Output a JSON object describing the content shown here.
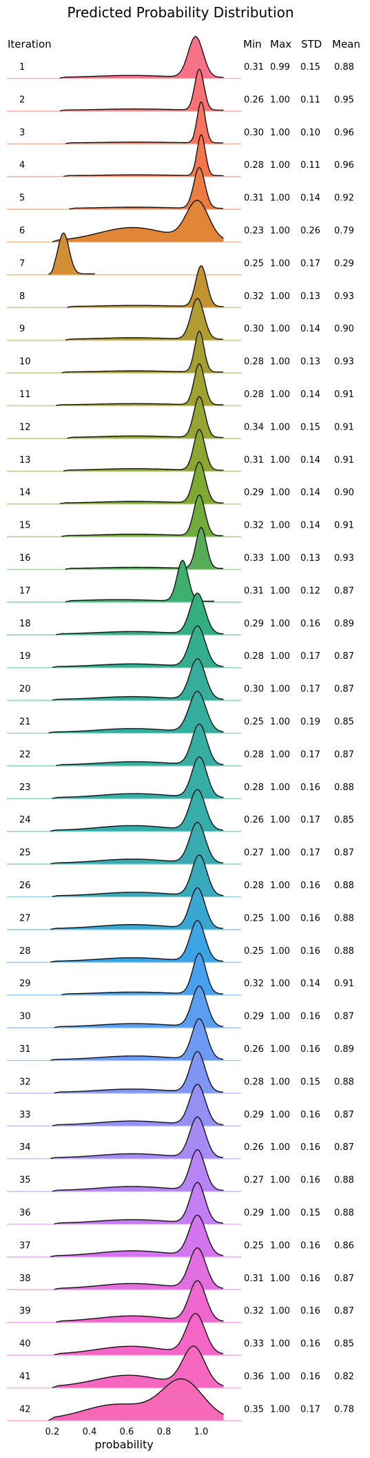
{
  "chart_data": {
    "type": "ridgeline",
    "title": "Predicted Probability Distribution",
    "xlabel": "probability",
    "row_label_header": "Iteration",
    "xlim": [
      0.0,
      1.2
    ],
    "x_ticks": [
      "0.2",
      "0.4",
      "0.6",
      "0.8",
      "1.0"
    ],
    "x_tick_values": [
      0.2,
      0.4,
      0.6,
      0.8,
      1.0
    ],
    "stat_headers": [
      "Min",
      "Max",
      "STD",
      "Mean"
    ],
    "colors": [
      "#f77189",
      "#f7754f",
      "#dc8932",
      "#ae9d31",
      "#97a431",
      "#77ab31",
      "#33b07a",
      "#35ad9c",
      "#36ada4",
      "#37abb4",
      "#3ba3ec",
      "#6e9bf4",
      "#a48cf4",
      "#cc7af4",
      "#f565cc",
      "#f669b7"
    ],
    "series": [
      {
        "label": "1",
        "min": "0.31",
        "max": "0.99",
        "std": "0.15",
        "mean": "0.88",
        "peak": 0.97,
        "width": 0.04,
        "start": 0.24,
        "bump": 0.05
      },
      {
        "label": "2",
        "min": "0.26",
        "max": "1.00",
        "std": "0.11",
        "mean": "0.95",
        "peak": 0.99,
        "width": 0.025,
        "start": 0.24,
        "bump": 0.03
      },
      {
        "label": "3",
        "min": "0.30",
        "max": "1.00",
        "std": "0.10",
        "mean": "0.96",
        "peak": 1.0,
        "width": 0.022,
        "start": 0.27,
        "bump": 0.02
      },
      {
        "label": "4",
        "min": "0.28",
        "max": "1.00",
        "std": "0.11",
        "mean": "0.96",
        "peak": 1.0,
        "width": 0.022,
        "start": 0.26,
        "bump": 0.02
      },
      {
        "label": "5",
        "min": "0.31",
        "max": "1.00",
        "std": "0.14",
        "mean": "0.92",
        "peak": 0.99,
        "width": 0.03,
        "start": 0.29,
        "bump": 0.03
      },
      {
        "label": "6",
        "min": "0.23",
        "max": "1.00",
        "std": "0.26",
        "mean": "0.79",
        "peak": 0.98,
        "width": 0.06,
        "start": 0.2,
        "bump": 0.35
      },
      {
        "label": "7",
        "min": "0.25",
        "max": "1.00",
        "std": "0.17",
        "mean": "0.29",
        "peak": 0.26,
        "width": 0.03,
        "start": 0.18,
        "bump": 0.02
      },
      {
        "label": "8",
        "min": "0.32",
        "max": "1.00",
        "std": "0.13",
        "mean": "0.93",
        "peak": 1.0,
        "width": 0.03,
        "start": 0.28,
        "bump": 0.03
      },
      {
        "label": "9",
        "min": "0.30",
        "max": "1.00",
        "std": "0.14",
        "mean": "0.90",
        "peak": 0.98,
        "width": 0.035,
        "start": 0.27,
        "bump": 0.04
      },
      {
        "label": "10",
        "min": "0.28",
        "max": "1.00",
        "std": "0.13",
        "mean": "0.93",
        "peak": 0.99,
        "width": 0.025,
        "start": 0.25,
        "bump": 0.03
      },
      {
        "label": "11",
        "min": "0.28",
        "max": "1.00",
        "std": "0.14",
        "mean": "0.91",
        "peak": 0.99,
        "width": 0.028,
        "start": 0.22,
        "bump": 0.03
      },
      {
        "label": "12",
        "min": "0.34",
        "max": "1.00",
        "std": "0.15",
        "mean": "0.91",
        "peak": 0.99,
        "width": 0.03,
        "start": 0.28,
        "bump": 0.04
      },
      {
        "label": "13",
        "min": "0.31",
        "max": "1.00",
        "std": "0.14",
        "mean": "0.91",
        "peak": 0.99,
        "width": 0.03,
        "start": 0.26,
        "bump": 0.04
      },
      {
        "label": "14",
        "min": "0.29",
        "max": "1.00",
        "std": "0.14",
        "mean": "0.90",
        "peak": 0.99,
        "width": 0.032,
        "start": 0.24,
        "bump": 0.04
      },
      {
        "label": "15",
        "min": "0.32",
        "max": "1.00",
        "std": "0.14",
        "mean": "0.91",
        "peak": 0.99,
        "width": 0.03,
        "start": 0.25,
        "bump": 0.04
      },
      {
        "label": "16",
        "min": "0.33",
        "max": "1.00",
        "std": "0.13",
        "mean": "0.93",
        "peak": 1.0,
        "width": 0.028,
        "start": 0.27,
        "bump": 0.03
      },
      {
        "label": "17",
        "min": "0.31",
        "max": "1.00",
        "std": "0.12",
        "mean": "0.87",
        "peak": 0.9,
        "width": 0.03,
        "start": 0.27,
        "bump": 0.04
      },
      {
        "label": "18",
        "min": "0.29",
        "max": "1.00",
        "std": "0.16",
        "mean": "0.89",
        "peak": 0.98,
        "width": 0.04,
        "start": 0.22,
        "bump": 0.06
      },
      {
        "label": "19",
        "min": "0.28",
        "max": "1.00",
        "std": "0.17",
        "mean": "0.87",
        "peak": 0.98,
        "width": 0.042,
        "start": 0.2,
        "bump": 0.07
      },
      {
        "label": "20",
        "min": "0.30",
        "max": "1.00",
        "std": "0.17",
        "mean": "0.87",
        "peak": 0.98,
        "width": 0.042,
        "start": 0.2,
        "bump": 0.07
      },
      {
        "label": "21",
        "min": "0.25",
        "max": "1.00",
        "std": "0.19",
        "mean": "0.85",
        "peak": 0.98,
        "width": 0.045,
        "start": 0.18,
        "bump": 0.09
      },
      {
        "label": "22",
        "min": "0.28",
        "max": "1.00",
        "std": "0.17",
        "mean": "0.87",
        "peak": 0.99,
        "width": 0.04,
        "start": 0.22,
        "bump": 0.08
      },
      {
        "label": "23",
        "min": "0.28",
        "max": "1.00",
        "std": "0.16",
        "mean": "0.88",
        "peak": 0.99,
        "width": 0.04,
        "start": 0.2,
        "bump": 0.1
      },
      {
        "label": "24",
        "min": "0.26",
        "max": "1.00",
        "std": "0.17",
        "mean": "0.85",
        "peak": 0.98,
        "width": 0.042,
        "start": 0.19,
        "bump": 0.12
      },
      {
        "label": "25",
        "min": "0.27",
        "max": "1.00",
        "std": "0.17",
        "mean": "0.87",
        "peak": 0.98,
        "width": 0.042,
        "start": 0.19,
        "bump": 0.1
      },
      {
        "label": "26",
        "min": "0.28",
        "max": "1.00",
        "std": "0.16",
        "mean": "0.88",
        "peak": 0.99,
        "width": 0.04,
        "start": 0.2,
        "bump": 0.09
      },
      {
        "label": "27",
        "min": "0.25",
        "max": "1.00",
        "std": "0.16",
        "mean": "0.88",
        "peak": 0.98,
        "width": 0.04,
        "start": 0.19,
        "bump": 0.1
      },
      {
        "label": "28",
        "min": "0.25",
        "max": "1.00",
        "std": "0.16",
        "mean": "0.88",
        "peak": 0.98,
        "width": 0.04,
        "start": 0.19,
        "bump": 0.09
      },
      {
        "label": "29",
        "min": "0.32",
        "max": "1.00",
        "std": "0.14",
        "mean": "0.91",
        "peak": 0.99,
        "width": 0.035,
        "start": 0.25,
        "bump": 0.05
      },
      {
        "label": "30",
        "min": "0.29",
        "max": "1.00",
        "std": "0.16",
        "mean": "0.87",
        "peak": 0.99,
        "width": 0.04,
        "start": 0.21,
        "bump": 0.08
      },
      {
        "label": "31",
        "min": "0.26",
        "max": "1.00",
        "std": "0.16",
        "mean": "0.89",
        "peak": 0.99,
        "width": 0.04,
        "start": 0.19,
        "bump": 0.09
      },
      {
        "label": "32",
        "min": "0.28",
        "max": "1.00",
        "std": "0.15",
        "mean": "0.88",
        "peak": 0.98,
        "width": 0.04,
        "start": 0.21,
        "bump": 0.08
      },
      {
        "label": "33",
        "min": "0.29",
        "max": "1.00",
        "std": "0.16",
        "mean": "0.87",
        "peak": 0.98,
        "width": 0.042,
        "start": 0.2,
        "bump": 0.1
      },
      {
        "label": "34",
        "min": "0.26",
        "max": "1.00",
        "std": "0.16",
        "mean": "0.87",
        "peak": 0.98,
        "width": 0.042,
        "start": 0.19,
        "bump": 0.1
      },
      {
        "label": "35",
        "min": "0.27",
        "max": "1.00",
        "std": "0.16",
        "mean": "0.88",
        "peak": 0.98,
        "width": 0.04,
        "start": 0.2,
        "bump": 0.1
      },
      {
        "label": "36",
        "min": "0.29",
        "max": "1.00",
        "std": "0.15",
        "mean": "0.88",
        "peak": 0.98,
        "width": 0.04,
        "start": 0.21,
        "bump": 0.09
      },
      {
        "label": "37",
        "min": "0.25",
        "max": "1.00",
        "std": "0.16",
        "mean": "0.86",
        "peak": 0.98,
        "width": 0.045,
        "start": 0.19,
        "bump": 0.13
      },
      {
        "label": "38",
        "min": "0.31",
        "max": "1.00",
        "std": "0.16",
        "mean": "0.87",
        "peak": 0.98,
        "width": 0.045,
        "start": 0.21,
        "bump": 0.13
      },
      {
        "label": "39",
        "min": "0.32",
        "max": "1.00",
        "std": "0.16",
        "mean": "0.87",
        "peak": 0.98,
        "width": 0.045,
        "start": 0.22,
        "bump": 0.14
      },
      {
        "label": "40",
        "min": "0.33",
        "max": "1.00",
        "std": "0.16",
        "mean": "0.85",
        "peak": 0.97,
        "width": 0.05,
        "start": 0.21,
        "bump": 0.2
      },
      {
        "label": "41",
        "min": "0.36",
        "max": "1.00",
        "std": "0.16",
        "mean": "0.82",
        "peak": 0.96,
        "width": 0.06,
        "start": 0.2,
        "bump": 0.3
      },
      {
        "label": "42",
        "min": "0.35",
        "max": "1.00",
        "std": "0.17",
        "mean": "0.78",
        "peak": 0.9,
        "width": 0.11,
        "start": 0.18,
        "bump": 0.4
      }
    ]
  }
}
